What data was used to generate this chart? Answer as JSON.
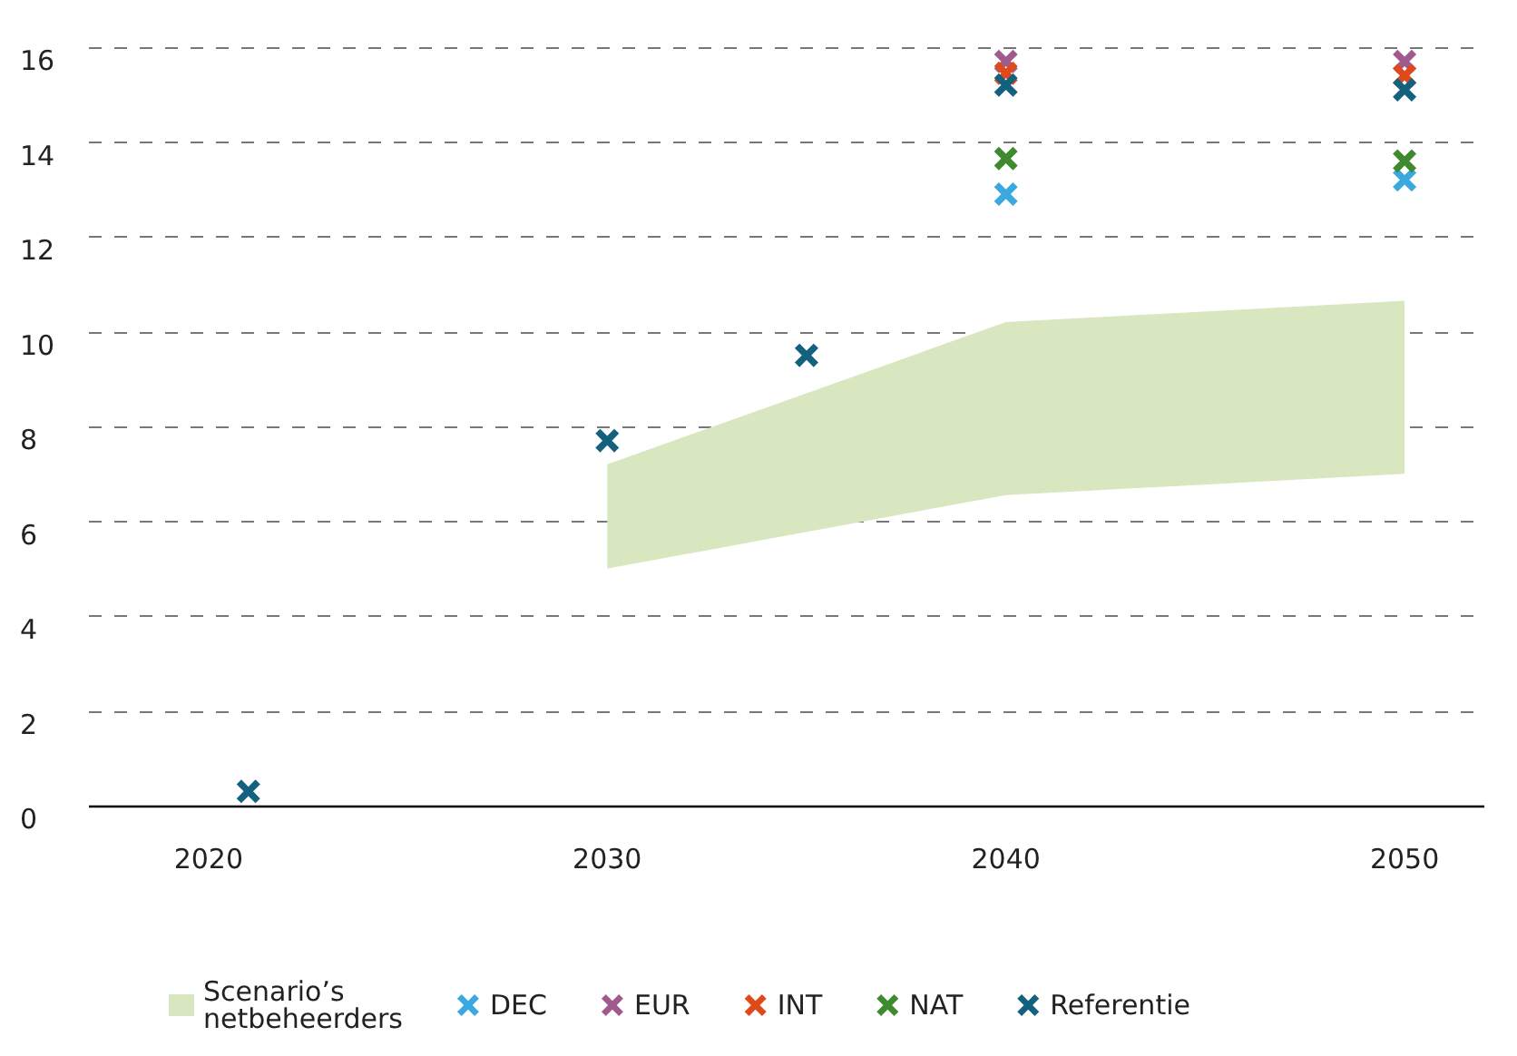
{
  "chart_data": {
    "type": "scatter",
    "xlim": [
      2017,
      2052
    ],
    "xticks": [
      2020,
      2030,
      2040,
      2050
    ],
    "ylim": [
      0,
      16
    ],
    "yticks": [
      0,
      2,
      4,
      6,
      8,
      10,
      12,
      14,
      16
    ],
    "grid": "y",
    "legend": "bottom",
    "marker": "cross",
    "series": [
      {
        "name": "Scenario’s netbeheerders",
        "type": "area",
        "color": "#d9e7c0",
        "x": [
          2030,
          2040,
          2050
        ],
        "values": [
          null,
          null,
          null
        ],
        "lower": [
          5.0,
          6.55,
          7.0
        ],
        "upper": [
          7.2,
          10.2,
          10.65
        ]
      },
      {
        "name": "DEC",
        "color": "#3ba9e0",
        "x": [
          2040,
          2050
        ],
        "values": [
          12.9,
          13.2
        ]
      },
      {
        "name": "EUR",
        "color": "#a05a8c",
        "x": [
          2040,
          2050
        ],
        "values": [
          15.7,
          15.7
        ]
      },
      {
        "name": "INT",
        "color": "#e04a1a",
        "x": [
          2040,
          2050
        ],
        "values": [
          15.45,
          15.4
        ]
      },
      {
        "name": "NAT",
        "color": "#3f8a2e",
        "x": [
          2040,
          2050
        ],
        "values": [
          13.65,
          13.6
        ]
      },
      {
        "name": "Referentie",
        "color": "#14607f",
        "x": [
          2021,
          2030,
          2035,
          2040,
          2050
        ],
        "values": [
          0.3,
          7.7,
          9.5,
          15.2,
          15.1
        ]
      }
    ]
  }
}
